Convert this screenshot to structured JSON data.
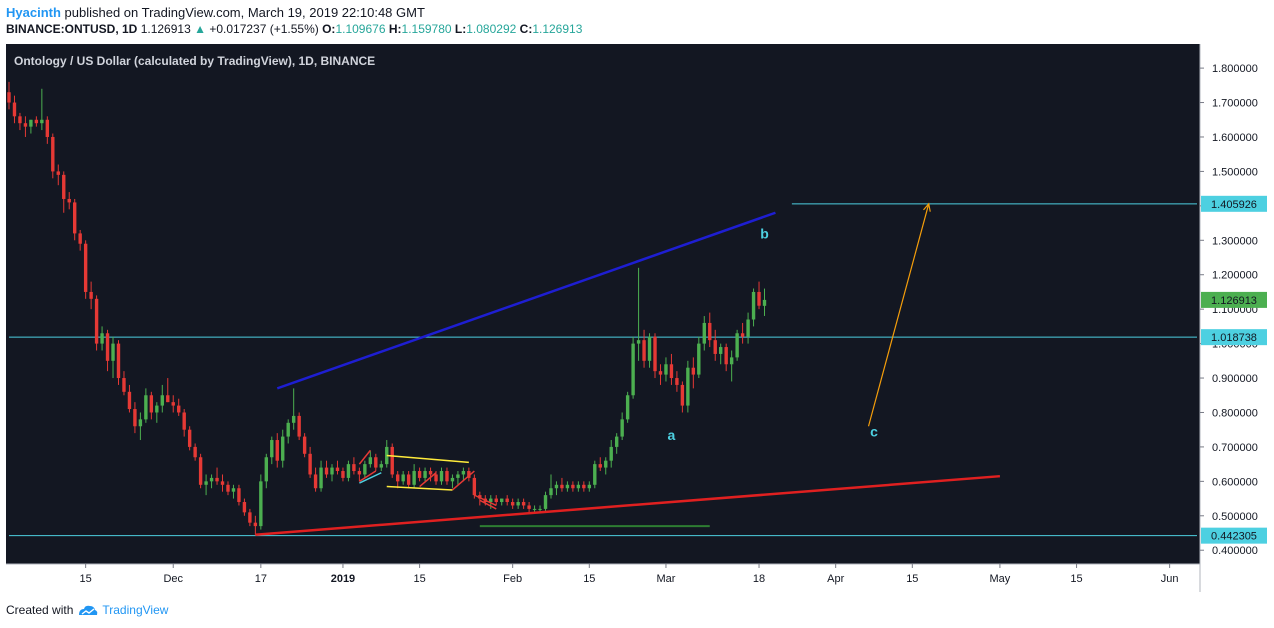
{
  "header": {
    "author": "Hyacinth",
    "published_text": "published on TradingView.com, March 19, 2019 22:10:48 GMT",
    "symbol": "BINANCE:ONTUSD, 1D",
    "last": "1.126913",
    "change_arrow": "▲",
    "change": "+0.017237 (+1.55%)",
    "o_label": "O:",
    "o_value": "1.109676",
    "h_label": "H:",
    "h_value": "1.159780",
    "l_label": "L:",
    "l_value": "1.080292",
    "c_label": "C:",
    "c_value": "1.126913"
  },
  "footer": {
    "created_with": "Created with",
    "brand": "TradingView"
  },
  "colors": {
    "background": "#131722",
    "up": "#26a69a",
    "bull_candle": "#4caf50",
    "bear_candle": "#e53935",
    "level_line": "#4dd0e1",
    "upper_trend": "#1e1ed2",
    "lower_trend": "#e02020",
    "projection_arrow": "#f59e0b",
    "label_text": "#4dd0e1"
  },
  "chart_data": {
    "type": "candlestick",
    "title": "Ontology / US Dollar (calculated by TradingView), 1D, BINANCE",
    "ylim": [
      0.36,
      1.87
    ],
    "y_ticks": [
      "1.800000",
      "1.700000",
      "1.600000",
      "1.500000",
      "1.400000",
      "1.300000",
      "1.200000",
      "1.100000",
      "1.000000",
      "0.900000",
      "0.800000",
      "0.700000",
      "0.600000",
      "0.500000",
      "0.400000"
    ],
    "y_tick_values": [
      1.8,
      1.7,
      1.6,
      1.5,
      1.4,
      1.3,
      1.2,
      1.1,
      1.0,
      0.9,
      0.8,
      0.7,
      0.6,
      0.5,
      0.4
    ],
    "x_ticks": [
      {
        "label": "15",
        "date": "2018-11-15"
      },
      {
        "label": "Dec",
        "date": "2018-12-01"
      },
      {
        "label": "17",
        "date": "2018-12-17"
      },
      {
        "label": "2019",
        "date": "2019-01-01"
      },
      {
        "label": "15",
        "date": "2019-01-15"
      },
      {
        "label": "Feb",
        "date": "2019-02-01"
      },
      {
        "label": "15",
        "date": "2019-02-15"
      },
      {
        "label": "Mar",
        "date": "2019-03-01"
      },
      {
        "label": "18",
        "date": "2019-03-18"
      },
      {
        "label": "Apr",
        "date": "2019-04-01"
      },
      {
        "label": "15",
        "date": "2019-04-15"
      },
      {
        "label": "May",
        "date": "2019-05-01"
      },
      {
        "label": "15",
        "date": "2019-05-15"
      },
      {
        "label": "Jun",
        "date": "2019-06-01"
      }
    ],
    "x_range": [
      "2018-11-01",
      "2019-06-06"
    ],
    "price_badges": [
      {
        "value": 1.405926,
        "label": "1.405926",
        "color": "#4dd0e1"
      },
      {
        "value": 1.126913,
        "label": "1.126913",
        "color": "#4caf50"
      },
      {
        "value": 1.018738,
        "label": "1.018738",
        "color": "#4dd0e1"
      },
      {
        "value": 0.442305,
        "label": "0.442305",
        "color": "#4dd0e1"
      }
    ],
    "horizontal_levels": [
      {
        "value": 1.405926,
        "from": "2019-03-24",
        "to": "2019-06-06"
      },
      {
        "value": 1.018738,
        "from": "2018-11-01",
        "to": "2019-06-06"
      },
      {
        "value": 0.442305,
        "from": "2018-11-01",
        "to": "2019-06-06"
      }
    ],
    "trend_lines": [
      {
        "name": "upper",
        "from": [
          "2018-12-20",
          0.87
        ],
        "to": [
          "2019-03-21",
          1.38
        ],
        "color": "#1e1ed2"
      },
      {
        "name": "lower",
        "from": [
          "2018-12-16",
          0.445
        ],
        "to": [
          "2019-05-01",
          0.615
        ],
        "color": "#e02020"
      }
    ],
    "support_line": {
      "from": [
        "2019-01-26",
        0.47
      ],
      "to": [
        "2019-03-09",
        0.47
      ],
      "color": "#2e7d32"
    },
    "projection_arrow": {
      "from": [
        "2019-04-07",
        0.76
      ],
      "to": [
        "2019-04-18",
        1.405926
      ]
    },
    "wave_labels": [
      {
        "text": "a",
        "date": "2019-03-02",
        "value": 0.72
      },
      {
        "text": "b",
        "date": "2019-03-19",
        "value": 1.305
      },
      {
        "text": "c",
        "date": "2019-04-08",
        "value": 0.73
      }
    ],
    "candles": [
      [
        "2018-11-01",
        1.73,
        1.76,
        1.68,
        1.7
      ],
      [
        "2018-11-02",
        1.7,
        1.72,
        1.64,
        1.66
      ],
      [
        "2018-11-03",
        1.66,
        1.67,
        1.62,
        1.64
      ],
      [
        "2018-11-04",
        1.64,
        1.66,
        1.6,
        1.63
      ],
      [
        "2018-11-05",
        1.63,
        1.65,
        1.61,
        1.65
      ],
      [
        "2018-11-06",
        1.65,
        1.66,
        1.63,
        1.64
      ],
      [
        "2018-11-07",
        1.64,
        1.74,
        1.62,
        1.65
      ],
      [
        "2018-11-08",
        1.65,
        1.66,
        1.58,
        1.6
      ],
      [
        "2018-11-09",
        1.6,
        1.61,
        1.48,
        1.5
      ],
      [
        "2018-11-10",
        1.5,
        1.52,
        1.46,
        1.49
      ],
      [
        "2018-11-11",
        1.49,
        1.5,
        1.38,
        1.42
      ],
      [
        "2018-11-12",
        1.42,
        1.44,
        1.39,
        1.41
      ],
      [
        "2018-11-13",
        1.41,
        1.42,
        1.3,
        1.32
      ],
      [
        "2018-11-14",
        1.32,
        1.33,
        1.27,
        1.29
      ],
      [
        "2018-11-15",
        1.29,
        1.3,
        1.13,
        1.15
      ],
      [
        "2018-11-16",
        1.15,
        1.18,
        1.1,
        1.13
      ],
      [
        "2018-11-17",
        1.13,
        1.14,
        0.98,
        1.0
      ],
      [
        "2018-11-18",
        1.0,
        1.05,
        0.98,
        1.03
      ],
      [
        "2018-11-19",
        1.03,
        1.04,
        0.92,
        0.95
      ],
      [
        "2018-11-20",
        0.95,
        1.02,
        0.9,
        1.0
      ],
      [
        "2018-11-21",
        1.0,
        1.01,
        0.88,
        0.9
      ],
      [
        "2018-11-22",
        0.9,
        0.92,
        0.85,
        0.86
      ],
      [
        "2018-11-23",
        0.86,
        0.88,
        0.8,
        0.81
      ],
      [
        "2018-11-24",
        0.81,
        0.83,
        0.74,
        0.76
      ],
      [
        "2018-11-25",
        0.76,
        0.8,
        0.72,
        0.78
      ],
      [
        "2018-11-26",
        0.78,
        0.87,
        0.77,
        0.85
      ],
      [
        "2018-11-27",
        0.85,
        0.86,
        0.78,
        0.8
      ],
      [
        "2018-11-28",
        0.8,
        0.83,
        0.77,
        0.82
      ],
      [
        "2018-11-29",
        0.82,
        0.88,
        0.8,
        0.85
      ],
      [
        "2018-11-30",
        0.85,
        0.9,
        0.83,
        0.83
      ],
      [
        "2018-12-01",
        0.83,
        0.85,
        0.8,
        0.82
      ],
      [
        "2018-12-02",
        0.82,
        0.84,
        0.79,
        0.8
      ],
      [
        "2018-12-03",
        0.8,
        0.81,
        0.73,
        0.75
      ],
      [
        "2018-12-04",
        0.75,
        0.76,
        0.69,
        0.7
      ],
      [
        "2018-12-05",
        0.7,
        0.71,
        0.66,
        0.67
      ],
      [
        "2018-12-06",
        0.67,
        0.68,
        0.58,
        0.59
      ],
      [
        "2018-12-07",
        0.59,
        0.62,
        0.56,
        0.6
      ],
      [
        "2018-12-08",
        0.6,
        0.62,
        0.58,
        0.61
      ],
      [
        "2018-12-09",
        0.61,
        0.64,
        0.59,
        0.6
      ],
      [
        "2018-12-10",
        0.6,
        0.62,
        0.57,
        0.59
      ],
      [
        "2018-12-11",
        0.59,
        0.6,
        0.56,
        0.57
      ],
      [
        "2018-12-12",
        0.57,
        0.59,
        0.55,
        0.58
      ],
      [
        "2018-12-13",
        0.58,
        0.59,
        0.53,
        0.54
      ],
      [
        "2018-12-14",
        0.54,
        0.55,
        0.5,
        0.51
      ],
      [
        "2018-12-15",
        0.51,
        0.52,
        0.47,
        0.48
      ],
      [
        "2018-12-16",
        0.48,
        0.5,
        0.445,
        0.47
      ],
      [
        "2018-12-17",
        0.47,
        0.62,
        0.46,
        0.6
      ],
      [
        "2018-12-18",
        0.6,
        0.68,
        0.58,
        0.67
      ],
      [
        "2018-12-19",
        0.67,
        0.73,
        0.65,
        0.72
      ],
      [
        "2018-12-20",
        0.72,
        0.74,
        0.64,
        0.66
      ],
      [
        "2018-12-21",
        0.66,
        0.75,
        0.64,
        0.73
      ],
      [
        "2018-12-22",
        0.73,
        0.78,
        0.71,
        0.77
      ],
      [
        "2018-12-23",
        0.77,
        0.87,
        0.75,
        0.79
      ],
      [
        "2018-12-24",
        0.79,
        0.8,
        0.72,
        0.73
      ],
      [
        "2018-12-25",
        0.73,
        0.74,
        0.67,
        0.68
      ],
      [
        "2018-12-26",
        0.68,
        0.7,
        0.61,
        0.62
      ],
      [
        "2018-12-27",
        0.62,
        0.64,
        0.57,
        0.58
      ],
      [
        "2018-12-28",
        0.58,
        0.66,
        0.57,
        0.64
      ],
      [
        "2018-12-29",
        0.64,
        0.66,
        0.61,
        0.62
      ],
      [
        "2018-12-30",
        0.62,
        0.65,
        0.6,
        0.64
      ],
      [
        "2018-12-31",
        0.64,
        0.66,
        0.62,
        0.63
      ],
      [
        "2019-01-01",
        0.63,
        0.64,
        0.6,
        0.61
      ],
      [
        "2019-01-02",
        0.61,
        0.66,
        0.6,
        0.65
      ],
      [
        "2019-01-03",
        0.65,
        0.67,
        0.62,
        0.63
      ],
      [
        "2019-01-04",
        0.63,
        0.64,
        0.6,
        0.62
      ],
      [
        "2019-01-05",
        0.62,
        0.66,
        0.61,
        0.65
      ],
      [
        "2019-01-06",
        0.65,
        0.69,
        0.64,
        0.67
      ],
      [
        "2019-01-07",
        0.67,
        0.68,
        0.63,
        0.64
      ],
      [
        "2019-01-08",
        0.64,
        0.66,
        0.63,
        0.65
      ],
      [
        "2019-01-09",
        0.65,
        0.72,
        0.64,
        0.7
      ],
      [
        "2019-01-10",
        0.7,
        0.71,
        0.61,
        0.62
      ],
      [
        "2019-01-11",
        0.62,
        0.63,
        0.58,
        0.6
      ],
      [
        "2019-01-12",
        0.6,
        0.63,
        0.59,
        0.62
      ],
      [
        "2019-01-13",
        0.62,
        0.63,
        0.58,
        0.59
      ],
      [
        "2019-01-14",
        0.59,
        0.65,
        0.58,
        0.63
      ],
      [
        "2019-01-15",
        0.63,
        0.64,
        0.6,
        0.61
      ],
      [
        "2019-01-16",
        0.61,
        0.64,
        0.6,
        0.63
      ],
      [
        "2019-01-17",
        0.63,
        0.64,
        0.6,
        0.62
      ],
      [
        "2019-01-18",
        0.62,
        0.63,
        0.59,
        0.6
      ],
      [
        "2019-01-19",
        0.6,
        0.64,
        0.59,
        0.63
      ],
      [
        "2019-01-20",
        0.63,
        0.64,
        0.59,
        0.6
      ],
      [
        "2019-01-21",
        0.6,
        0.62,
        0.58,
        0.61
      ],
      [
        "2019-01-22",
        0.61,
        0.63,
        0.59,
        0.62
      ],
      [
        "2019-01-23",
        0.62,
        0.64,
        0.6,
        0.63
      ],
      [
        "2019-01-24",
        0.63,
        0.64,
        0.6,
        0.61
      ],
      [
        "2019-01-25",
        0.61,
        0.62,
        0.55,
        0.56
      ],
      [
        "2019-01-26",
        0.56,
        0.57,
        0.53,
        0.55
      ],
      [
        "2019-01-27",
        0.55,
        0.56,
        0.53,
        0.54
      ],
      [
        "2019-01-28",
        0.54,
        0.56,
        0.52,
        0.55
      ],
      [
        "2019-01-29",
        0.55,
        0.56,
        0.53,
        0.54
      ],
      [
        "2019-01-30",
        0.54,
        0.55,
        0.53,
        0.55
      ],
      [
        "2019-01-31",
        0.55,
        0.56,
        0.53,
        0.54
      ],
      [
        "2019-02-01",
        0.54,
        0.55,
        0.52,
        0.53
      ],
      [
        "2019-02-02",
        0.53,
        0.55,
        0.52,
        0.54
      ],
      [
        "2019-02-03",
        0.54,
        0.55,
        0.52,
        0.53
      ],
      [
        "2019-02-04",
        0.53,
        0.54,
        0.51,
        0.52
      ],
      [
        "2019-02-05",
        0.52,
        0.53,
        0.51,
        0.52
      ],
      [
        "2019-02-06",
        0.52,
        0.53,
        0.51,
        0.52
      ],
      [
        "2019-02-07",
        0.52,
        0.57,
        0.51,
        0.56
      ],
      [
        "2019-02-08",
        0.56,
        0.62,
        0.55,
        0.58
      ],
      [
        "2019-02-09",
        0.58,
        0.6,
        0.56,
        0.59
      ],
      [
        "2019-02-10",
        0.59,
        0.61,
        0.57,
        0.58
      ],
      [
        "2019-02-11",
        0.58,
        0.6,
        0.57,
        0.59
      ],
      [
        "2019-02-12",
        0.59,
        0.6,
        0.57,
        0.58
      ],
      [
        "2019-02-13",
        0.58,
        0.6,
        0.57,
        0.59
      ],
      [
        "2019-02-14",
        0.59,
        0.6,
        0.57,
        0.58
      ],
      [
        "2019-02-15",
        0.58,
        0.6,
        0.57,
        0.59
      ],
      [
        "2019-02-16",
        0.59,
        0.66,
        0.58,
        0.65
      ],
      [
        "2019-02-17",
        0.65,
        0.67,
        0.63,
        0.64
      ],
      [
        "2019-02-18",
        0.64,
        0.67,
        0.62,
        0.66
      ],
      [
        "2019-02-19",
        0.66,
        0.72,
        0.64,
        0.7
      ],
      [
        "2019-02-20",
        0.7,
        0.74,
        0.68,
        0.73
      ],
      [
        "2019-02-21",
        0.73,
        0.8,
        0.72,
        0.78
      ],
      [
        "2019-02-22",
        0.78,
        0.86,
        0.77,
        0.85
      ],
      [
        "2019-02-23",
        0.85,
        1.02,
        0.84,
        1.0
      ],
      [
        "2019-02-24",
        1.0,
        1.22,
        0.95,
        1.01
      ],
      [
        "2019-02-25",
        1.01,
        1.04,
        0.93,
        0.95
      ],
      [
        "2019-02-26",
        0.95,
        1.03,
        0.93,
        1.02
      ],
      [
        "2019-02-27",
        1.02,
        1.03,
        0.9,
        0.92
      ],
      [
        "2019-02-28",
        0.92,
        0.94,
        0.88,
        0.91
      ],
      [
        "2019-03-01",
        0.91,
        0.96,
        0.89,
        0.94
      ],
      [
        "2019-03-02",
        0.94,
        0.97,
        0.88,
        0.9
      ],
      [
        "2019-03-03",
        0.9,
        0.92,
        0.86,
        0.88
      ],
      [
        "2019-03-04",
        0.88,
        0.89,
        0.8,
        0.82
      ],
      [
        "2019-03-05",
        0.82,
        0.95,
        0.8,
        0.93
      ],
      [
        "2019-03-06",
        0.93,
        0.96,
        0.87,
        0.91
      ],
      [
        "2019-03-07",
        0.91,
        1.02,
        0.9,
        1.0
      ],
      [
        "2019-03-08",
        1.0,
        1.08,
        0.98,
        1.06
      ],
      [
        "2019-03-09",
        1.06,
        1.09,
        0.99,
        1.01
      ],
      [
        "2019-03-10",
        1.01,
        1.04,
        0.95,
        0.97
      ],
      [
        "2019-03-11",
        0.97,
        1.0,
        0.94,
        0.99
      ],
      [
        "2019-03-12",
        0.99,
        1.0,
        0.92,
        0.94
      ],
      [
        "2019-03-13",
        0.94,
        0.98,
        0.89,
        0.96
      ],
      [
        "2019-03-14",
        0.96,
        1.04,
        0.95,
        1.03
      ],
      [
        "2019-03-15",
        1.03,
        1.06,
        1.0,
        1.02
      ],
      [
        "2019-03-16",
        1.02,
        1.09,
        1.0,
        1.07
      ],
      [
        "2019-03-17",
        1.07,
        1.16,
        1.05,
        1.15
      ],
      [
        "2019-03-18",
        1.15,
        1.18,
        1.1,
        1.11
      ],
      [
        "2019-03-19",
        1.109676,
        1.15978,
        1.080292,
        1.126913
      ]
    ]
  }
}
